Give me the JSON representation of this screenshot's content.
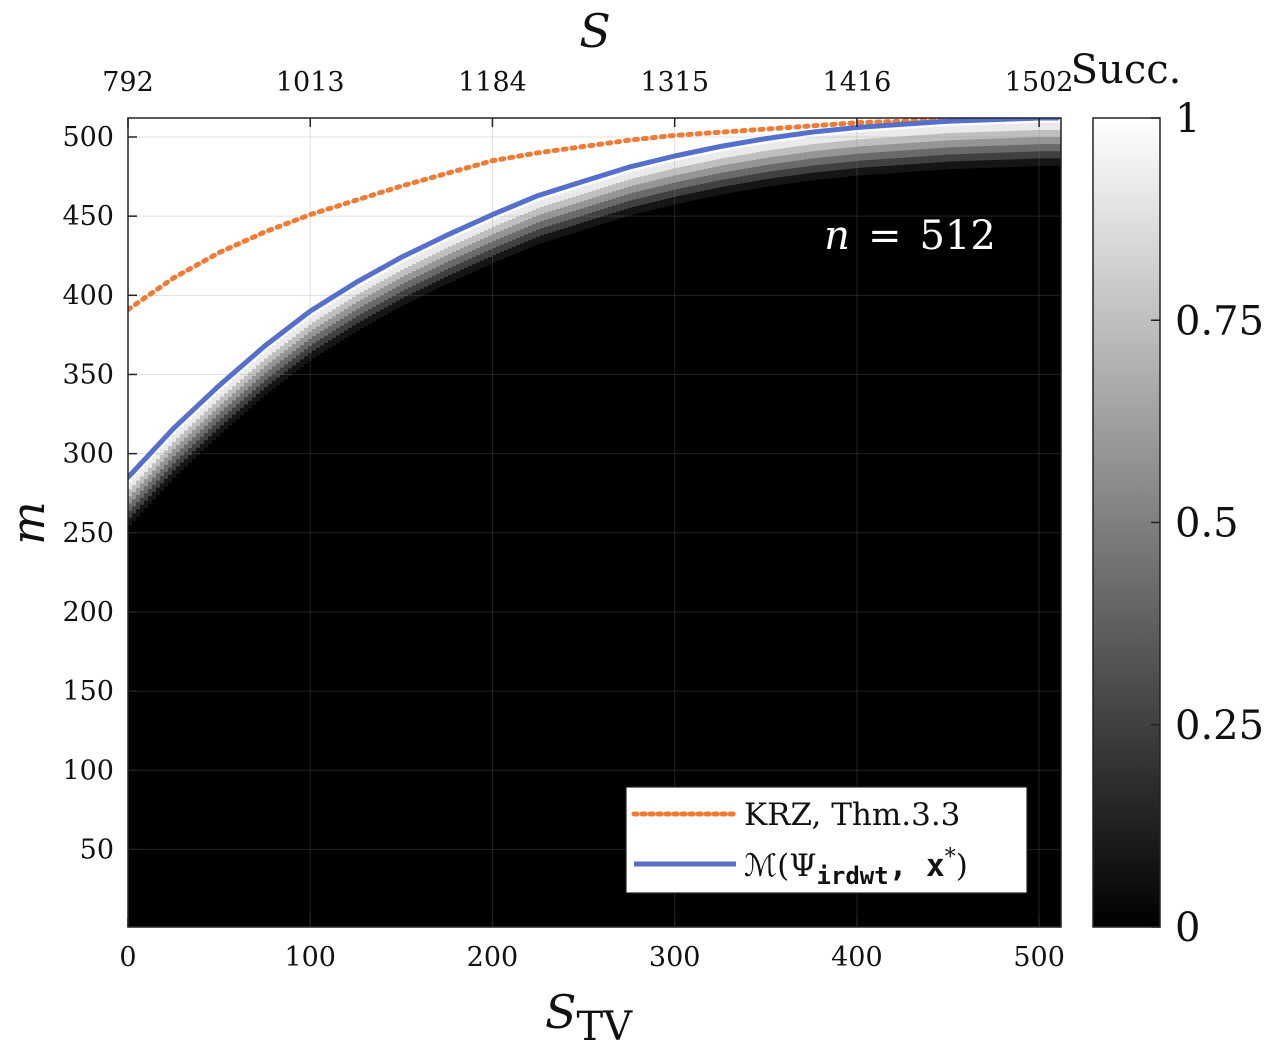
{
  "chart_data": {
    "type": "heatmap",
    "xlabel": "S",
    "xlabel_sub": "TV",
    "ylabel": "m",
    "top_xlabel": "S",
    "xlim": [
      0,
      512
    ],
    "ylim": [
      1,
      512
    ],
    "x_ticks": [
      "0",
      "100",
      "200",
      "300",
      "400",
      "500"
    ],
    "x_tick_values": [
      0,
      100,
      200,
      300,
      400,
      500
    ],
    "y_ticks": [
      "50",
      "100",
      "150",
      "200",
      "250",
      "300",
      "350",
      "400",
      "450",
      "500"
    ],
    "y_tick_values": [
      50,
      100,
      150,
      200,
      250,
      300,
      350,
      400,
      450,
      500
    ],
    "top_ticks": [
      "792",
      "1013",
      "1184",
      "1315",
      "1416",
      "1502"
    ],
    "top_tick_positions_stv": [
      0,
      100,
      200,
      300,
      400,
      500
    ],
    "grid": true,
    "colormap": "gray",
    "colorbar": {
      "title": "Succ.",
      "range": [
        0,
        1
      ],
      "ticks": [
        "0",
        "0.25",
        "0.5",
        "0.75",
        "1"
      ],
      "tick_values": [
        0,
        0.25,
        0.5,
        0.75,
        1
      ]
    },
    "annotation": {
      "lhs": "n",
      "eq": "=",
      "rhs": "512"
    },
    "heatmap_transition": {
      "description_values": "success = 1 above blue curve, 0 below; transition width ~ 25 in m",
      "white_region": "m above boundary",
      "black_region": "m below boundary"
    },
    "series": [
      {
        "name": "KRZ, Thm.3.3",
        "color": "#f07b35",
        "style": "dotted",
        "x": [
          0,
          25,
          50,
          75,
          100,
          125,
          150,
          175,
          200,
          225,
          250,
          275,
          300,
          325,
          350,
          375,
          400,
          425,
          450,
          475,
          500,
          510
        ],
        "y": [
          391,
          411,
          427,
          440,
          451,
          460,
          469,
          477,
          485,
          490,
          494,
          498,
          501,
          503,
          505,
          507,
          509,
          510,
          511,
          511,
          512,
          512
        ]
      },
      {
        "name": "M(Ψ_irdwt, x*)",
        "color": "#5570cc",
        "style": "solid",
        "x": [
          0,
          25,
          50,
          75,
          100,
          125,
          150,
          175,
          200,
          225,
          250,
          275,
          300,
          325,
          350,
          375,
          400,
          425,
          450,
          475,
          500,
          510
        ],
        "y": [
          285,
          316,
          343,
          368,
          390,
          408,
          424,
          438,
          451,
          463,
          472,
          481,
          488,
          494,
          499,
          503,
          506,
          508,
          510,
          511,
          512,
          512
        ]
      }
    ],
    "legend": {
      "placement": "bottom-right",
      "entries": [
        {
          "label": "KRZ, Thm.3.3"
        },
        {
          "label_main": "ℳ(Ψ",
          "label_sub": "irdwt",
          "label_mid": ", x",
          "label_sup": "*",
          "label_end": ")"
        }
      ]
    }
  }
}
